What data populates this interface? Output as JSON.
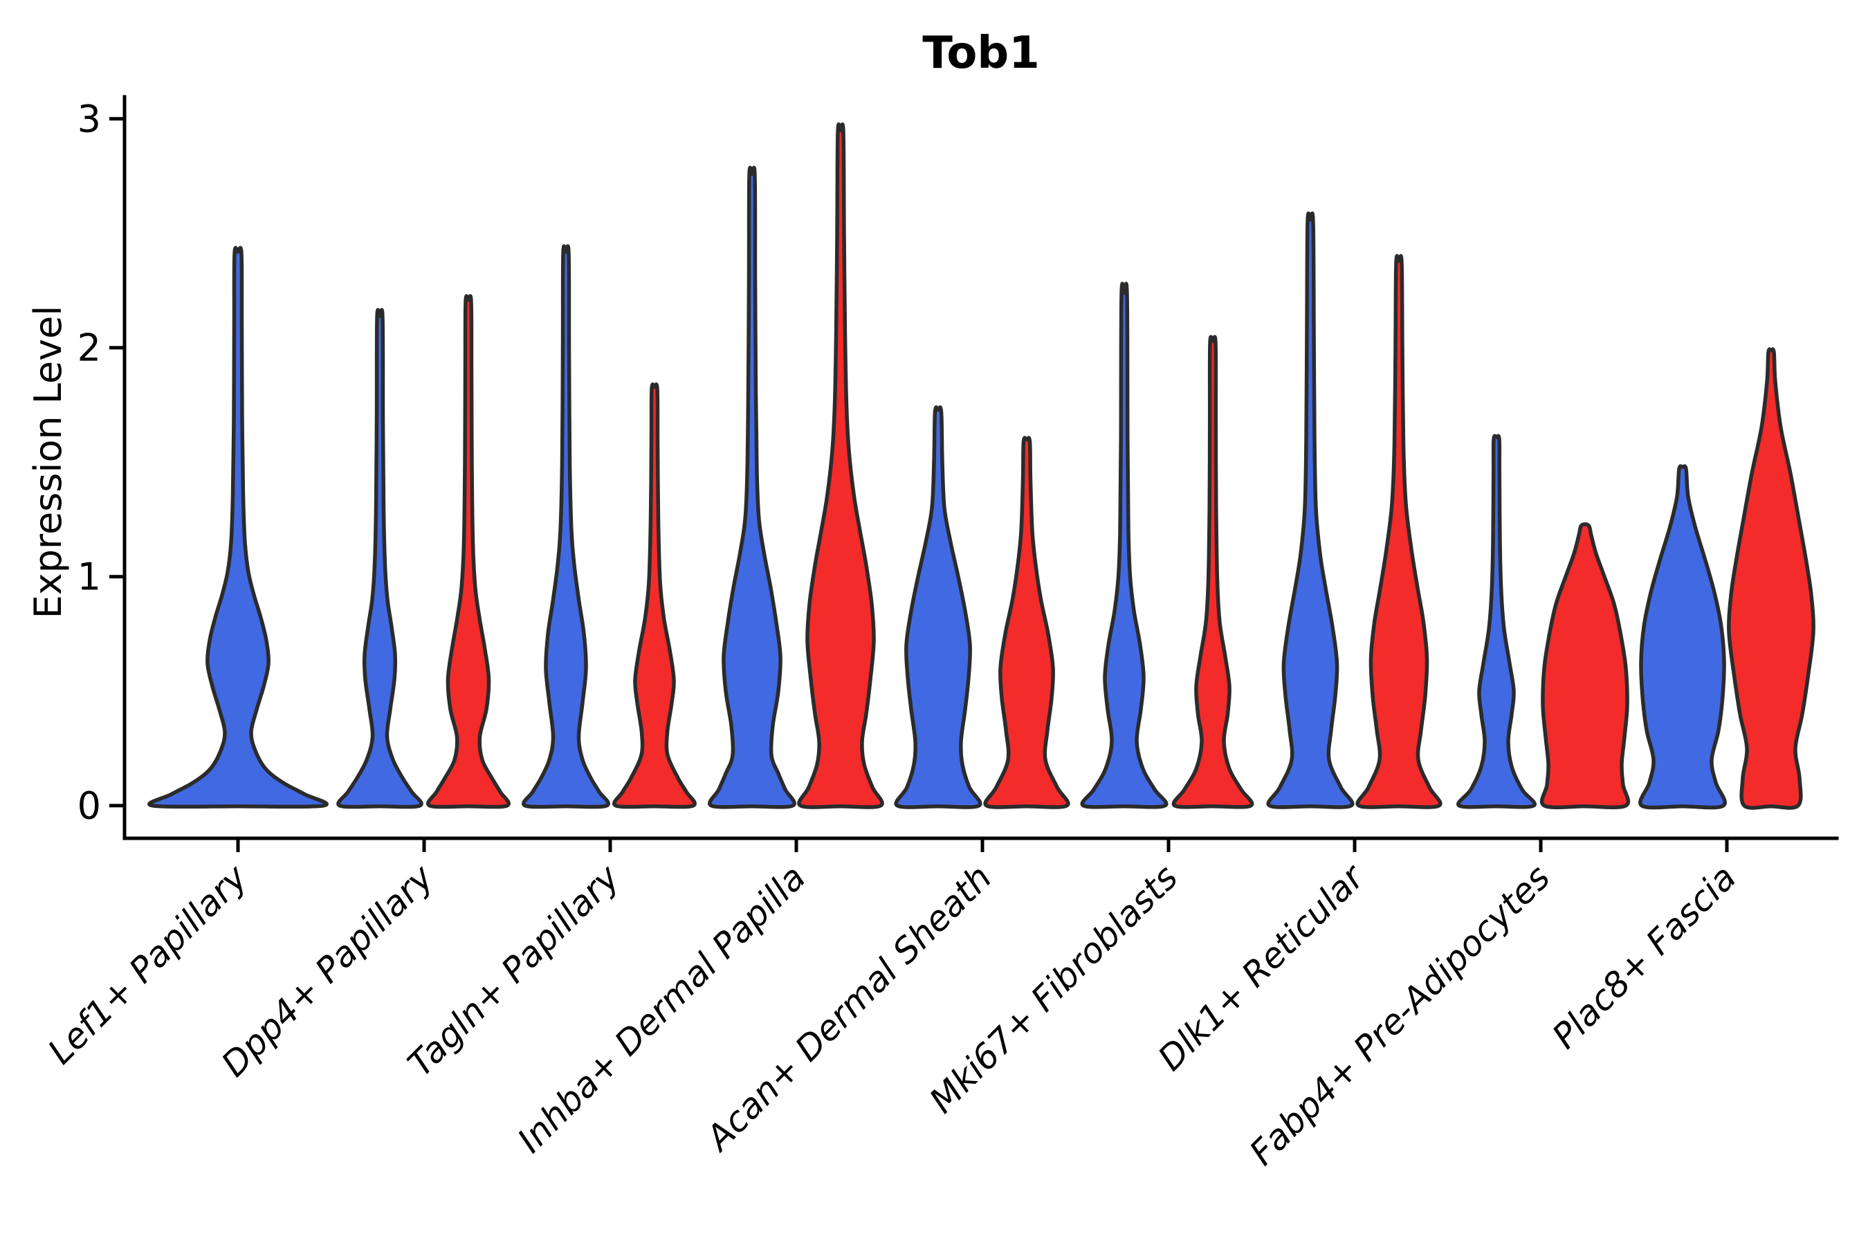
{
  "title": "Tob1",
  "y_axis": {
    "label": "Expression Level",
    "ticks": [
      "0",
      "1",
      "2",
      "3"
    ],
    "limit": [
      0,
      3
    ]
  },
  "x_axis": {
    "categories": [
      "Lef1+ Papillary",
      "Dpp4+ Papillary",
      "Tagln+ Papillary",
      "Inhba+ Dermal Papilla",
      "Acan+ Dermal Sheath",
      "Mki67+ Fibroblasts",
      "Dlk1+ Reticular",
      "Fabp4+ Pre-Adipocytes",
      "Plac8+ Fascia"
    ]
  },
  "chart_data": {
    "type": "violin",
    "title": "Tob1",
    "xlabel": "",
    "ylabel": "Expression Level",
    "ylim": [
      0,
      3.05
    ],
    "yticks": [
      0,
      1,
      2,
      3
    ],
    "grid": false,
    "legend_position": "none",
    "categories": [
      "Lef1+ Papillary",
      "Dpp4+ Papillary",
      "Tagln+ Papillary",
      "Inhba+ Dermal Papilla",
      "Acan+ Dermal Sheath",
      "Mki67+ Fibroblasts",
      "Dlk1+ Reticular",
      "Fabp4+ Pre-Adipocytes",
      "Plac8+ Fascia"
    ],
    "groups": [
      {
        "name": "blue",
        "color": "#4169E1"
      },
      {
        "name": "red",
        "color": "#F32B2B"
      }
    ],
    "violins": [
      {
        "category_index": 0,
        "group": "blue",
        "side": "full",
        "peak": 2.41,
        "profile": [
          [
            0,
            124
          ],
          [
            0.05,
            96
          ],
          [
            0.1,
            65
          ],
          [
            0.16,
            40
          ],
          [
            0.24,
            25
          ],
          [
            0.32,
            19
          ],
          [
            0.42,
            27
          ],
          [
            0.52,
            37
          ],
          [
            0.62,
            44
          ],
          [
            0.72,
            41
          ],
          [
            0.82,
            33
          ],
          [
            0.92,
            23
          ],
          [
            1.02,
            15
          ],
          [
            1.15,
            10
          ],
          [
            1.35,
            7.5
          ],
          [
            1.7,
            6
          ],
          [
            2.1,
            5.5
          ],
          [
            2.41,
            5
          ]
        ]
      },
      {
        "category_index": 1,
        "group": "blue",
        "side": "left",
        "peak": 2.13,
        "profile": [
          [
            0,
            58
          ],
          [
            0.06,
            46
          ],
          [
            0.12,
            33
          ],
          [
            0.2,
            19
          ],
          [
            0.3,
            10.5
          ],
          [
            0.42,
            15
          ],
          [
            0.55,
            21
          ],
          [
            0.66,
            22
          ],
          [
            0.78,
            17
          ],
          [
            0.9,
            11
          ],
          [
            1.05,
            7.5
          ],
          [
            1.3,
            5.5
          ],
          [
            1.7,
            4.5
          ],
          [
            2.13,
            4
          ]
        ]
      },
      {
        "category_index": 1,
        "group": "red",
        "side": "right",
        "peak": 2.2,
        "profile": [
          [
            0,
            56
          ],
          [
            0.06,
            46
          ],
          [
            0.12,
            34
          ],
          [
            0.2,
            20
          ],
          [
            0.3,
            16.5
          ],
          [
            0.42,
            26
          ],
          [
            0.55,
            29.5
          ],
          [
            0.68,
            24
          ],
          [
            0.82,
            16
          ],
          [
            0.95,
            10
          ],
          [
            1.15,
            6.5
          ],
          [
            1.5,
            5
          ],
          [
            1.9,
            4.5
          ],
          [
            2.2,
            4
          ]
        ]
      },
      {
        "category_index": 2,
        "group": "blue",
        "side": "left",
        "peak": 2.41,
        "profile": [
          [
            0,
            59
          ],
          [
            0.06,
            48
          ],
          [
            0.12,
            36
          ],
          [
            0.2,
            24
          ],
          [
            0.3,
            18.5
          ],
          [
            0.45,
            24
          ],
          [
            0.6,
            29
          ],
          [
            0.75,
            26
          ],
          [
            0.9,
            18.5
          ],
          [
            1.05,
            12
          ],
          [
            1.2,
            8
          ],
          [
            1.5,
            5.5
          ],
          [
            2.0,
            4.5
          ],
          [
            2.41,
            4
          ]
        ]
      },
      {
        "category_index": 2,
        "group": "red",
        "side": "right",
        "peak": 1.82,
        "profile": [
          [
            0,
            56
          ],
          [
            0.06,
            46
          ],
          [
            0.12,
            34
          ],
          [
            0.22,
            19
          ],
          [
            0.32,
            18.5
          ],
          [
            0.45,
            25
          ],
          [
            0.55,
            28
          ],
          [
            0.68,
            22
          ],
          [
            0.82,
            13.5
          ],
          [
            0.98,
            8
          ],
          [
            1.25,
            5.5
          ],
          [
            1.6,
            4.5
          ],
          [
            1.82,
            4
          ]
        ]
      },
      {
        "category_index": 3,
        "group": "blue",
        "side": "left",
        "peak": 2.75,
        "profile": [
          [
            0,
            59
          ],
          [
            0.07,
            48
          ],
          [
            0.14,
            38
          ],
          [
            0.22,
            28
          ],
          [
            0.35,
            30
          ],
          [
            0.5,
            38
          ],
          [
            0.65,
            41
          ],
          [
            0.8,
            35
          ],
          [
            0.95,
            27
          ],
          [
            1.1,
            17.5
          ],
          [
            1.25,
            10
          ],
          [
            1.45,
            7
          ],
          [
            1.8,
            5.5
          ],
          [
            2.3,
            4.5
          ],
          [
            2.75,
            4
          ]
        ]
      },
      {
        "category_index": 3,
        "group": "red",
        "side": "right",
        "peak": 2.94,
        "profile": [
          [
            0,
            58
          ],
          [
            0.08,
            46
          ],
          [
            0.18,
            34
          ],
          [
            0.28,
            31
          ],
          [
            0.4,
            37
          ],
          [
            0.55,
            43
          ],
          [
            0.72,
            48
          ],
          [
            0.88,
            45
          ],
          [
            1.05,
            37
          ],
          [
            1.2,
            28
          ],
          [
            1.35,
            19.5
          ],
          [
            1.55,
            12
          ],
          [
            1.75,
            8.5
          ],
          [
            2.05,
            6.5
          ],
          [
            2.5,
            5
          ],
          [
            2.94,
            4
          ]
        ]
      },
      {
        "category_index": 4,
        "group": "blue",
        "side": "left",
        "peak": 1.72,
        "profile": [
          [
            0,
            59
          ],
          [
            0.08,
            45
          ],
          [
            0.18,
            35
          ],
          [
            0.28,
            33
          ],
          [
            0.42,
            39
          ],
          [
            0.56,
            44
          ],
          [
            0.7,
            46
          ],
          [
            0.85,
            39
          ],
          [
            1.0,
            29
          ],
          [
            1.15,
            18
          ],
          [
            1.3,
            9
          ],
          [
            1.5,
            6
          ],
          [
            1.72,
            4.5
          ]
        ]
      },
      {
        "category_index": 4,
        "group": "red",
        "side": "right",
        "peak": 1.59,
        "profile": [
          [
            0,
            58
          ],
          [
            0.08,
            44
          ],
          [
            0.2,
            27
          ],
          [
            0.33,
            30
          ],
          [
            0.47,
            36
          ],
          [
            0.6,
            38
          ],
          [
            0.75,
            31
          ],
          [
            0.9,
            20.5
          ],
          [
            1.05,
            13
          ],
          [
            1.2,
            8
          ],
          [
            1.42,
            5.5
          ],
          [
            1.59,
            4.5
          ]
        ]
      },
      {
        "category_index": 5,
        "group": "blue",
        "side": "left",
        "peak": 2.23,
        "profile": [
          [
            0,
            59
          ],
          [
            0.07,
            44
          ],
          [
            0.16,
            27
          ],
          [
            0.28,
            18
          ],
          [
            0.42,
            24
          ],
          [
            0.56,
            28
          ],
          [
            0.7,
            23
          ],
          [
            0.85,
            14
          ],
          [
            1.0,
            8.5
          ],
          [
            1.2,
            6
          ],
          [
            1.6,
            4.8
          ],
          [
            2.23,
            4
          ]
        ]
      },
      {
        "category_index": 5,
        "group": "red",
        "side": "right",
        "peak": 2.02,
        "profile": [
          [
            0,
            55
          ],
          [
            0.07,
            41
          ],
          [
            0.16,
            24
          ],
          [
            0.28,
            16
          ],
          [
            0.4,
            21.5
          ],
          [
            0.52,
            24
          ],
          [
            0.65,
            18
          ],
          [
            0.8,
            10
          ],
          [
            0.98,
            6.5
          ],
          [
            1.3,
            4.8
          ],
          [
            1.7,
            4.3
          ],
          [
            2.02,
            4
          ]
        ]
      },
      {
        "category_index": 6,
        "group": "blue",
        "side": "left",
        "peak": 2.55,
        "profile": [
          [
            0,
            59
          ],
          [
            0.08,
            44
          ],
          [
            0.2,
            27
          ],
          [
            0.33,
            30
          ],
          [
            0.48,
            36
          ],
          [
            0.62,
            38.5
          ],
          [
            0.78,
            32
          ],
          [
            0.95,
            22
          ],
          [
            1.1,
            14
          ],
          [
            1.3,
            8
          ],
          [
            1.6,
            6
          ],
          [
            2.1,
            5
          ],
          [
            2.55,
            4
          ]
        ]
      },
      {
        "category_index": 6,
        "group": "red",
        "side": "right",
        "peak": 2.37,
        "profile": [
          [
            0,
            58
          ],
          [
            0.08,
            44
          ],
          [
            0.2,
            28
          ],
          [
            0.33,
            32
          ],
          [
            0.48,
            38
          ],
          [
            0.64,
            40.5
          ],
          [
            0.8,
            35.5
          ],
          [
            0.95,
            27
          ],
          [
            1.12,
            18
          ],
          [
            1.32,
            10
          ],
          [
            1.58,
            6.5
          ],
          [
            2.0,
            5
          ],
          [
            2.37,
            4
          ]
        ]
      },
      {
        "category_index": 7,
        "group": "blue",
        "side": "left",
        "peak": 1.6,
        "profile": [
          [
            0,
            54
          ],
          [
            0.07,
            37
          ],
          [
            0.17,
            22
          ],
          [
            0.28,
            17
          ],
          [
            0.4,
            22
          ],
          [
            0.5,
            25
          ],
          [
            0.62,
            19
          ],
          [
            0.77,
            11
          ],
          [
            0.93,
            7
          ],
          [
            1.15,
            5
          ],
          [
            1.45,
            4.3
          ],
          [
            1.6,
            4
          ]
        ]
      },
      {
        "category_index": 7,
        "group": "red",
        "side": "right",
        "peak": 1.22,
        "profile": [
          [
            0,
            59
          ],
          [
            0.09,
            55
          ],
          [
            0.18,
            53
          ],
          [
            0.3,
            57
          ],
          [
            0.44,
            61
          ],
          [
            0.6,
            59
          ],
          [
            0.74,
            52
          ],
          [
            0.88,
            42
          ],
          [
            1.0,
            28
          ],
          [
            1.1,
            16
          ],
          [
            1.18,
            9
          ],
          [
            1.22,
            6
          ]
        ]
      },
      {
        "category_index": 8,
        "group": "blue",
        "side": "left",
        "peak": 1.47,
        "profile": [
          [
            0,
            59
          ],
          [
            0.1,
            48
          ],
          [
            0.2,
            42
          ],
          [
            0.33,
            52
          ],
          [
            0.48,
            58
          ],
          [
            0.63,
            60
          ],
          [
            0.78,
            56
          ],
          [
            0.93,
            46
          ],
          [
            1.08,
            32
          ],
          [
            1.22,
            18
          ],
          [
            1.35,
            8
          ],
          [
            1.47,
            5
          ]
        ]
      },
      {
        "category_index": 8,
        "group": "red",
        "side": "right",
        "peak": 1.98,
        "profile": [
          [
            0,
            39
          ],
          [
            0.12,
            41
          ],
          [
            0.25,
            35
          ],
          [
            0.4,
            45
          ],
          [
            0.58,
            54
          ],
          [
            0.76,
            61
          ],
          [
            0.92,
            58
          ],
          [
            1.08,
            50
          ],
          [
            1.25,
            40
          ],
          [
            1.45,
            28
          ],
          [
            1.65,
            14
          ],
          [
            1.85,
            6
          ],
          [
            1.98,
            4
          ]
        ]
      }
    ]
  }
}
